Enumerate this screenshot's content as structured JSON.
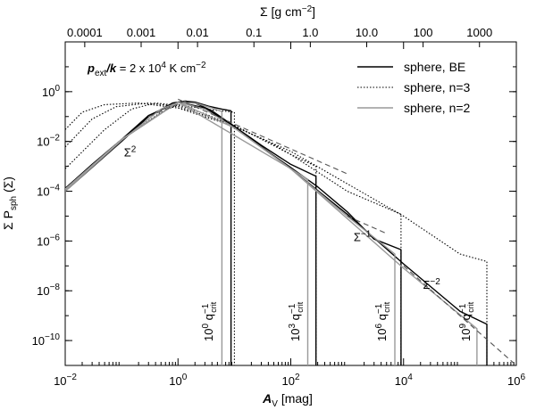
{
  "chart_data": {
    "type": "line",
    "xscale": "log",
    "yscale": "log",
    "xlim": [
      0.01,
      1000000
    ],
    "ylim": [
      1e-11,
      100
    ],
    "xlabel": "A",
    "xlabel_sub": "V",
    "xlabel_unit": " [mag]",
    "ylabel": "Σ P",
    "ylabel_sub": "sph",
    "ylabel_tail": " (Σ)",
    "top_axis": {
      "label": "Σ [g cm",
      "label_sup": "−2",
      "label_tail": "]",
      "av_per_sigma": 222,
      "ticks": [
        {
          "text": "0.0001",
          "value": 0.0001
        },
        {
          "text": "0.001",
          "value": 0.001
        },
        {
          "text": "0.01",
          "value": 0.01
        },
        {
          "text": "0.1",
          "value": 0.1
        },
        {
          "text": "1.0",
          "value": 1.0
        },
        {
          "text": "10.0",
          "value": 10.0
        },
        {
          "text": "100",
          "value": 100
        },
        {
          "text": "1000",
          "value": 1000
        }
      ]
    },
    "x_ticks": [
      {
        "value": 0.01,
        "base": "10",
        "exp": "−2"
      },
      {
        "value": 1,
        "base": "10",
        "exp": "0"
      },
      {
        "value": 100,
        "base": "10",
        "exp": "2"
      },
      {
        "value": 10000,
        "base": "10",
        "exp": "4"
      },
      {
        "value": 1000000,
        "base": "10",
        "exp": "6"
      }
    ],
    "y_ticks": [
      {
        "value": 1,
        "base": "10",
        "exp": "0"
      },
      {
        "value": 0.01,
        "base": "10",
        "exp": "−2"
      },
      {
        "value": 0.0001,
        "base": "10",
        "exp": "−4"
      },
      {
        "value": 1e-06,
        "base": "10",
        "exp": "−6"
      },
      {
        "value": 1e-08,
        "base": "10",
        "exp": "−8"
      },
      {
        "value": 1e-10,
        "base": "10",
        "exp": "−10"
      }
    ],
    "pressure_label": {
      "p": "p",
      "p_sub": "ext",
      "k": "/k",
      "value": " = 2 x 10",
      "value_sup": "4",
      "unit": " K cm",
      "unit_sup": "−2"
    },
    "legend": [
      {
        "label": "sphere, BE",
        "style": "solid",
        "color": "#000000"
      },
      {
        "label": "sphere, n=3",
        "style": "dotted",
        "color": "#000000"
      },
      {
        "label": "sphere, n=2",
        "style": "solid",
        "color": "#999999"
      }
    ],
    "slope_labels": [
      {
        "base": "Σ",
        "sup": "2",
        "x": 0.11,
        "y": 0.0025
      },
      {
        "base": "Σ",
        "sup": "−1",
        "x": 1300,
        "y": 1e-06
      },
      {
        "base": "Σ",
        "sup": "−2",
        "x": 22000,
        "y": 1.2e-08
      }
    ],
    "cutoff_labels": [
      {
        "base": "10",
        "exp": "0",
        "q": " q",
        "q_sup": "−1",
        "q_sub": "crit",
        "x": 5.5
      },
      {
        "base": "10",
        "exp": "3",
        "q": " q",
        "q_sup": "−1",
        "q_sub": "crit",
        "x": 190
      },
      {
        "base": "10",
        "exp": "6",
        "q": " q",
        "q_sup": "−1",
        "q_sub": "crit",
        "x": 6500
      },
      {
        "base": "10",
        "exp": "9",
        "q": " q",
        "q_sup": "−1",
        "q_sub": "crit",
        "x": 200000
      }
    ],
    "series": [
      {
        "name": "BE (q=1)",
        "style": "solid",
        "color": "#000000",
        "points": [
          [
            0.01,
            0.0001
          ],
          [
            0.03,
            0.0009
          ],
          [
            0.1,
            0.01
          ],
          [
            0.3,
            0.1
          ],
          [
            0.8,
            0.35
          ],
          [
            1.3,
            0.42
          ],
          [
            2,
            0.38
          ],
          [
            3.5,
            0.26
          ],
          [
            6,
            0.2
          ],
          [
            8.7,
            0.17
          ],
          [
            8.7,
            1e-11
          ]
        ]
      },
      {
        "name": "BE (q=1e-3)",
        "style": "solid",
        "color": "#000000",
        "points": [
          [
            0.01,
            0.00013
          ],
          [
            0.03,
            0.0012
          ],
          [
            0.1,
            0.012
          ],
          [
            0.3,
            0.11
          ],
          [
            1,
            0.38
          ],
          [
            2,
            0.35
          ],
          [
            4,
            0.17
          ],
          [
            10,
            0.04
          ],
          [
            30,
            0.007
          ],
          [
            100,
            0.0012
          ],
          [
            280,
            0.0004
          ],
          [
            280,
            1e-11
          ]
        ]
      },
      {
        "name": "BE (q=1e-6)",
        "style": "solid",
        "color": "#000000",
        "points": [
          [
            0.01,
            0.00013
          ],
          [
            0.1,
            0.012
          ],
          [
            1,
            0.38
          ],
          [
            3,
            0.22
          ],
          [
            10,
            0.04
          ],
          [
            30,
            0.006
          ],
          [
            100,
            0.0009
          ],
          [
            300,
            0.00015
          ],
          [
            1000,
            1.5e-05
          ],
          [
            3000,
            1.2e-06
          ],
          [
            9000,
            4.5e-07
          ],
          [
            9000,
            1e-11
          ]
        ]
      },
      {
        "name": "BE (q=1e-9)",
        "style": "solid",
        "color": "#000000",
        "points": [
          [
            0.01,
            0.00013
          ],
          [
            0.1,
            0.012
          ],
          [
            1,
            0.38
          ],
          [
            3,
            0.22
          ],
          [
            10,
            0.04
          ],
          [
            100,
            0.0008
          ],
          [
            1000,
            1.2e-05
          ],
          [
            10000,
            1.2e-07
          ],
          [
            100000,
            1.5e-09
          ],
          [
            300000,
            4.5e-10
          ],
          [
            300000,
            1e-11
          ]
        ]
      },
      {
        "name": "n=3 (q=1)",
        "style": "dotted",
        "color": "#000000",
        "points": [
          [
            0.01,
            0.0001
          ],
          [
            0.1,
            0.012
          ],
          [
            0.5,
            0.15
          ],
          [
            1,
            0.3
          ],
          [
            3,
            0.2
          ],
          [
            10,
            0.15
          ],
          [
            10,
            1e-11
          ]
        ]
      },
      {
        "name": "n=3 (q=1e-3)",
        "style": "dotted",
        "color": "#000000",
        "points": [
          [
            0.01,
            0.0008
          ],
          [
            0.05,
            0.03
          ],
          [
            0.15,
            0.2
          ],
          [
            0.4,
            0.35
          ],
          [
            1,
            0.28
          ],
          [
            3,
            0.13
          ],
          [
            10,
            0.04
          ],
          [
            40,
            0.01
          ],
          [
            100,
            0.003
          ],
          [
            280,
            0.001
          ],
          [
            280,
            1e-11
          ]
        ]
      },
      {
        "name": "n=3 (q=1e-6)",
        "style": "dotted",
        "color": "#000000",
        "points": [
          [
            0.01,
            0.006
          ],
          [
            0.03,
            0.08
          ],
          [
            0.08,
            0.25
          ],
          [
            0.3,
            0.35
          ],
          [
            1,
            0.25
          ],
          [
            10,
            0.045
          ],
          [
            100,
            0.003
          ],
          [
            1000,
            0.0001
          ],
          [
            9000,
            1.2e-05
          ],
          [
            9000,
            1e-11
          ]
        ]
      },
      {
        "name": "n=3 (q=1e-9)",
        "style": "dotted",
        "color": "#000000",
        "points": [
          [
            0.01,
            0.03
          ],
          [
            0.02,
            0.15
          ],
          [
            0.05,
            0.3
          ],
          [
            0.2,
            0.35
          ],
          [
            1,
            0.22
          ],
          [
            10,
            0.04
          ],
          [
            100,
            0.004
          ],
          [
            1000,
            0.0002
          ],
          [
            10000,
            1e-05
          ],
          [
            100000,
            3e-07
          ],
          [
            300000,
            1.5e-07
          ],
          [
            300000,
            1e-11
          ]
        ]
      },
      {
        "name": "n=2 (q=1)",
        "style": "solid",
        "color": "#999999",
        "points": [
          [
            0.01,
            0.0001
          ],
          [
            0.1,
            0.011
          ],
          [
            0.5,
            0.2
          ],
          [
            1,
            0.36
          ],
          [
            2,
            0.35
          ],
          [
            4,
            0.22
          ],
          [
            6,
            0.16
          ],
          [
            6,
            1e-11
          ]
        ]
      },
      {
        "name": "n=2 (q=1e-3)",
        "style": "solid",
        "color": "#999999",
        "points": [
          [
            0.01,
            0.00012
          ],
          [
            0.1,
            0.012
          ],
          [
            1,
            0.38
          ],
          [
            3,
            0.2
          ],
          [
            10,
            0.035
          ],
          [
            100,
            0.0008
          ],
          [
            200,
            0.0003
          ],
          [
            200,
            1e-11
          ]
        ]
      },
      {
        "name": "n=2 (q=1e-6)",
        "style": "solid",
        "color": "#999999",
        "points": [
          [
            0.01,
            0.00012
          ],
          [
            0.1,
            0.012
          ],
          [
            1,
            0.38
          ],
          [
            10,
            0.035
          ],
          [
            100,
            0.0008
          ],
          [
            1000,
            1e-05
          ],
          [
            7000,
            3e-07
          ],
          [
            7000,
            1e-11
          ]
        ]
      },
      {
        "name": "n=2 (q=1e-9)",
        "style": "solid",
        "color": "#999999",
        "points": [
          [
            0.01,
            0.00012
          ],
          [
            0.1,
            0.012
          ],
          [
            1,
            0.38
          ],
          [
            100,
            0.0008
          ],
          [
            10000,
            8e-08
          ],
          [
            200000,
            3e-10
          ],
          [
            200000,
            1e-11
          ]
        ]
      },
      {
        "name": "Σ^2 asymptote",
        "style": "dashed",
        "color": "#555555",
        "points": [
          [
            0.3,
            0.1
          ],
          [
            1.6,
            0.5
          ]
        ]
      },
      {
        "name": "Σ^-1 asymptote",
        "style": "dashed",
        "color": "#555555",
        "points": [
          [
            1,
            0.5
          ],
          [
            1000,
            0.0005
          ]
        ]
      },
      {
        "name": "Σ^-1 asymptote (lower)",
        "style": "dashed",
        "color": "#555555",
        "points": [
          [
            1000,
            1e-05
          ],
          [
            5000,
            2e-06
          ]
        ]
      },
      {
        "name": "Σ^-2 asymptote",
        "style": "dashed",
        "color": "#555555",
        "points": [
          [
            10000,
            1e-07
          ],
          [
            1000000,
            1e-11
          ]
        ]
      }
    ]
  }
}
